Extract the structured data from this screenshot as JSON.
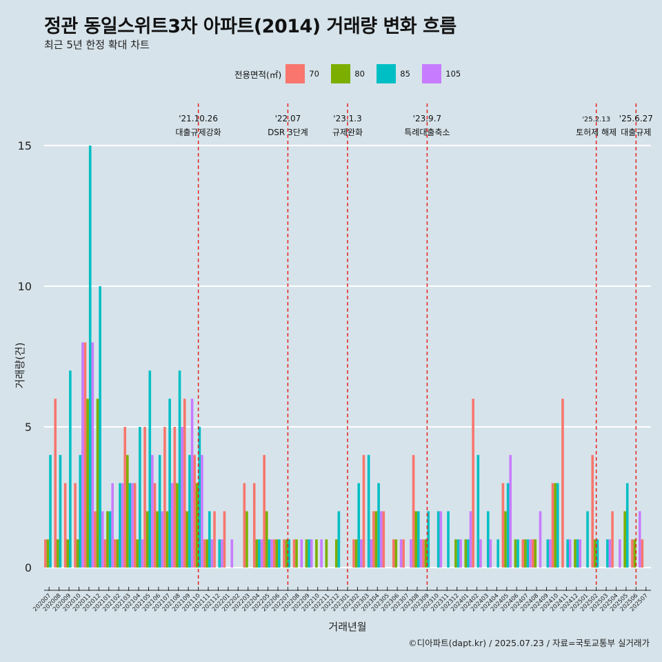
{
  "title": "정관 동일스위트3차 아파트(2014) 거래량 변화 흐름",
  "subtitle": "최근 5년 한정 확대 차트",
  "caption": "©디아파트(dapt.kr) / 2025.07.23 / 자료=국토교통부 실거래가",
  "legend": {
    "title": "전용면적(㎡)",
    "items": [
      {
        "label": "70",
        "color": "#f8766d"
      },
      {
        "label": "80",
        "color": "#7cae00"
      },
      {
        "label": "85",
        "color": "#00bfc4"
      },
      {
        "label": "105",
        "color": "#c77cff"
      }
    ]
  },
  "chart_data": {
    "type": "bar",
    "title": "정관 동일스위트3차 아파트(2014) 거래량 변화 흐름",
    "xlabel": "거래년월",
    "ylabel": "거래량(건)",
    "ylim": [
      0,
      15
    ],
    "yticks": [
      0,
      5,
      10,
      15
    ],
    "grid": true,
    "legend_position": "top",
    "categories": [
      "202007",
      "202008",
      "202009",
      "202010",
      "202011",
      "202012",
      "202101",
      "202102",
      "202103",
      "202104",
      "202105",
      "202106",
      "202107",
      "202108",
      "202109",
      "202110",
      "202111",
      "202112",
      "202201",
      "202202",
      "202203",
      "202204",
      "202205",
      "202206",
      "202207",
      "202208",
      "202209",
      "202210",
      "202211",
      "202212",
      "202301",
      "202302",
      "202303",
      "202304",
      "202305",
      "202306",
      "202307",
      "202308",
      "202309",
      "202310",
      "202311",
      "202312",
      "202401",
      "202402",
      "202403",
      "202404",
      "202405",
      "202406",
      "202407",
      "202408",
      "202409",
      "202410",
      "202411",
      "202412",
      "202501",
      "202502",
      "202503",
      "202504",
      "202505",
      "202506",
      "202507"
    ],
    "series": [
      {
        "name": "70",
        "color": "#f8766d",
        "values": [
          1,
          6,
          3,
          3,
          8,
          2,
          1,
          1,
          5,
          3,
          5,
          3,
          5,
          5,
          6,
          4,
          1,
          2,
          2,
          0,
          3,
          3,
          4,
          1,
          1,
          1,
          0,
          0,
          0,
          0,
          0,
          1,
          4,
          2,
          2,
          1,
          1,
          4,
          1,
          0,
          0,
          0,
          0,
          6,
          0,
          0,
          3,
          0,
          1,
          1,
          0,
          3,
          6,
          0,
          0,
          4,
          0,
          2,
          0,
          1,
          1
        ]
      },
      {
        "name": "80",
        "color": "#7cae00",
        "values": [
          1,
          1,
          1,
          1,
          6,
          6,
          2,
          1,
          4,
          1,
          2,
          2,
          2,
          3,
          2,
          3,
          1,
          0,
          0,
          0,
          2,
          1,
          2,
          1,
          1,
          1,
          1,
          1,
          1,
          1,
          0,
          1,
          0,
          2,
          0,
          1,
          0,
          2,
          1,
          0,
          0,
          1,
          1,
          0,
          0,
          0,
          2,
          1,
          1,
          1,
          0,
          3,
          0,
          1,
          0,
          1,
          0,
          0,
          2,
          1,
          0
        ]
      },
      {
        "name": "85",
        "color": "#00bfc4",
        "values": [
          4,
          4,
          7,
          4,
          15,
          10,
          2,
          3,
          3,
          5,
          7,
          4,
          6,
          7,
          4,
          5,
          2,
          1,
          0,
          0,
          0,
          1,
          1,
          1,
          1,
          0,
          1,
          0,
          0,
          2,
          0,
          3,
          4,
          3,
          0,
          0,
          0,
          2,
          2,
          2,
          2,
          1,
          1,
          4,
          2,
          1,
          3,
          1,
          1,
          0,
          1,
          3,
          1,
          1,
          2,
          1,
          1,
          0,
          3,
          0,
          0
        ]
      },
      {
        "name": "105",
        "color": "#c77cff",
        "values": [
          0,
          0,
          0,
          8,
          8,
          2,
          3,
          3,
          3,
          1,
          4,
          2,
          3,
          5,
          6,
          4,
          1,
          1,
          1,
          0,
          0,
          1,
          1,
          0,
          0,
          1,
          1,
          1,
          0,
          0,
          0,
          1,
          1,
          2,
          0,
          1,
          1,
          1,
          0,
          2,
          0,
          1,
          2,
          1,
          1,
          0,
          4,
          0,
          1,
          2,
          1,
          0,
          1,
          1,
          0,
          0,
          1,
          1,
          0,
          2,
          0
        ]
      }
    ],
    "annotations": [
      {
        "date": "'21.10.26",
        "label": "대출규제강화",
        "at": "202110"
      },
      {
        "date": "'22.07",
        "label": "DSR 3단계",
        "at": "202207"
      },
      {
        "date": "'23.1.3",
        "label": "규제완화",
        "at": "202301"
      },
      {
        "date": "'23.9.7",
        "label": "특례대출축소",
        "at": "202309"
      },
      {
        "date": "'25.2.13",
        "label": "토허제 해제",
        "at": "202502"
      },
      {
        "date": "'25.6.27",
        "label": "대출규제",
        "at": "202506"
      }
    ]
  }
}
